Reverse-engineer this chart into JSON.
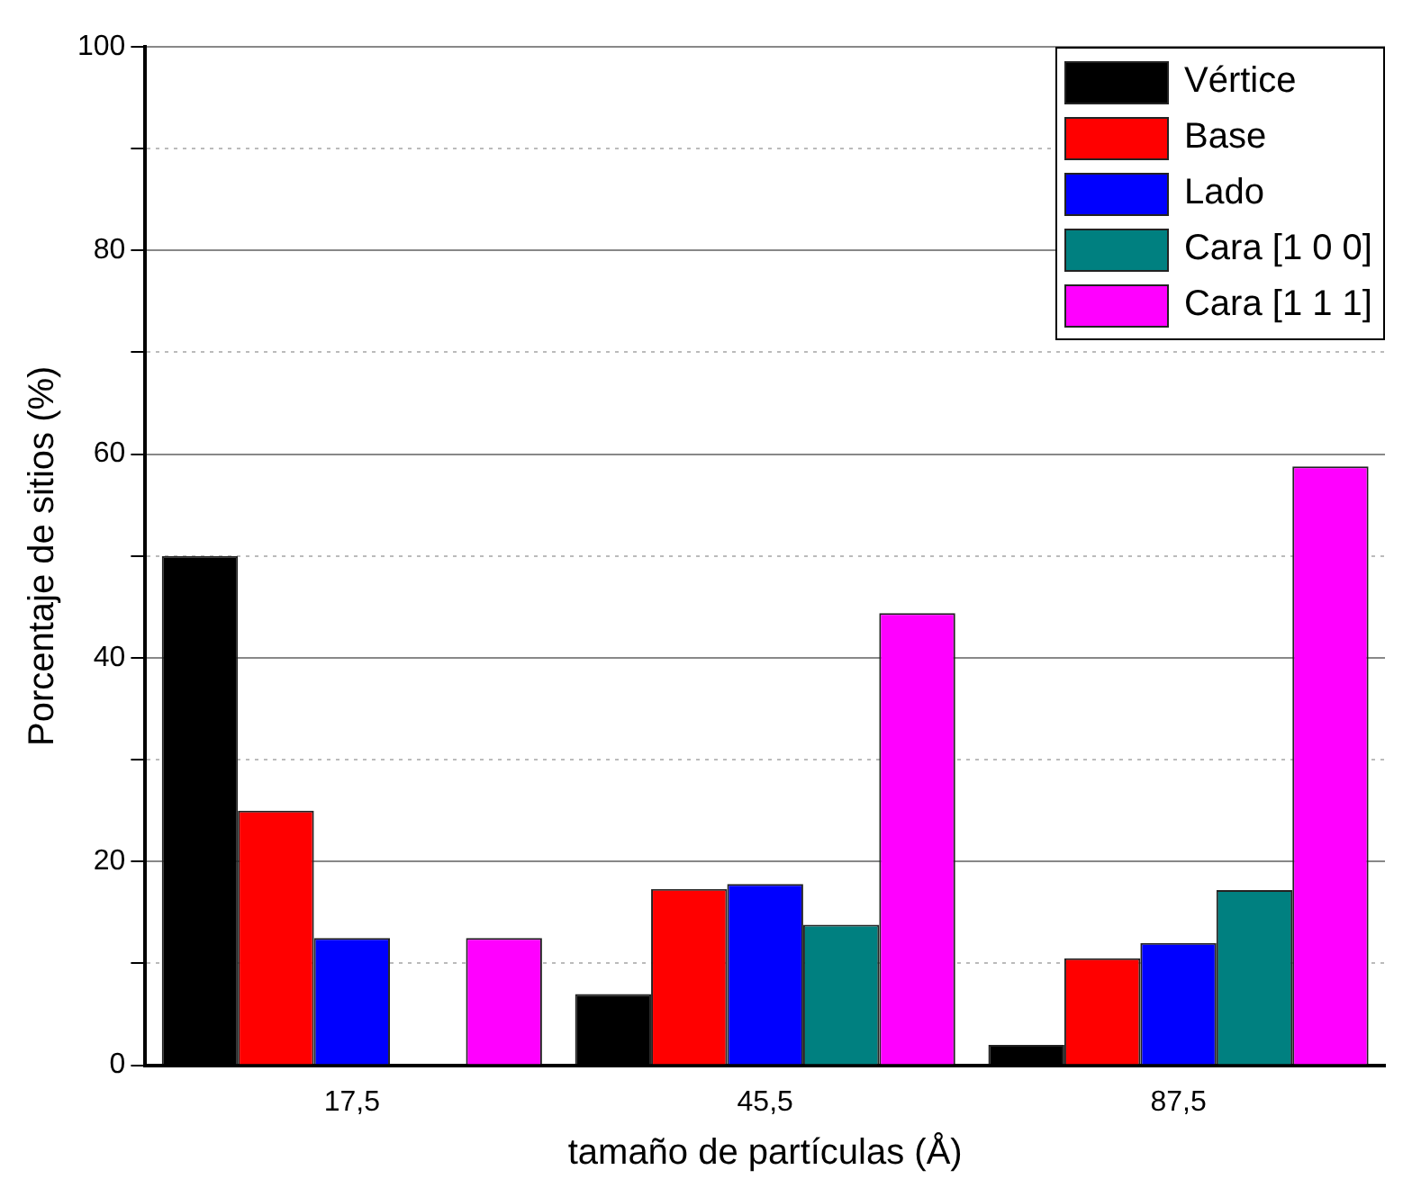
{
  "chart_data": {
    "type": "bar",
    "xlabel": "tamaño de partículas (Å)",
    "ylabel": "Porcentaje de sitios (%)",
    "categories": [
      "17,5",
      "45,5",
      "87,5"
    ],
    "series": [
      {
        "name": "Vértice",
        "color": "#000000",
        "values": [
          50,
          7.0,
          2.0
        ]
      },
      {
        "name": "Base",
        "color": "#ff0000",
        "values": [
          25,
          17.3,
          10.5
        ]
      },
      {
        "name": "Lado",
        "color": "#0000ff",
        "values": [
          12.5,
          17.8,
          12.0
        ]
      },
      {
        "name": "Cara [1 0 0]",
        "color": "#008080",
        "values": [
          0,
          13.8,
          17.2
        ]
      },
      {
        "name": "Cara [1 1 1]",
        "color": "#ff00ff",
        "values": [
          12.5,
          44.4,
          58.8
        ]
      }
    ],
    "ylim": [
      0,
      100
    ],
    "yticks": [
      0,
      {
        "value": 10,
        "label": null
      },
      20,
      {
        "value": 30,
        "label": null
      },
      40,
      {
        "value": 50,
        "label": null
      },
      60,
      {
        "value": 70,
        "label": null
      },
      80,
      {
        "value": 90,
        "label": null
      },
      100
    ],
    "grid": "y",
    "legend": "top right"
  }
}
